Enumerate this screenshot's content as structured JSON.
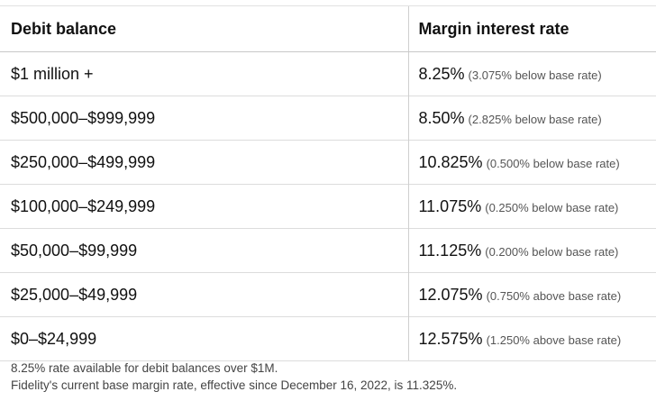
{
  "table": {
    "headers": {
      "balance": "Debit balance",
      "rate": "Margin interest rate"
    },
    "rows": [
      {
        "balance": "$1 million +",
        "rate": "8.25%",
        "note": "(3.075% below base rate)"
      },
      {
        "balance": "$500,000–$999,999",
        "rate": "8.50%",
        "note": "(2.825% below base rate)"
      },
      {
        "balance": "$250,000–$499,999",
        "rate": "10.825%",
        "note": "(0.500% below base rate)"
      },
      {
        "balance": "$100,000–$249,999",
        "rate": "11.075%",
        "note": "(0.250% below base rate)"
      },
      {
        "balance": "$50,000–$99,999",
        "rate": "11.125%",
        "note": "(0.200% below base rate)"
      },
      {
        "balance": "$25,000–$49,999",
        "rate": "12.075%",
        "note": "(0.750% above base rate)"
      },
      {
        "balance": "$0–$24,999",
        "rate": "12.575%",
        "note": "(1.250% above base rate)"
      }
    ]
  },
  "footnotes": [
    "8.25% rate available for debit balances over $1M.",
    "Fidelity's current base margin rate, effective since December 16, 2022, is 11.325%."
  ]
}
